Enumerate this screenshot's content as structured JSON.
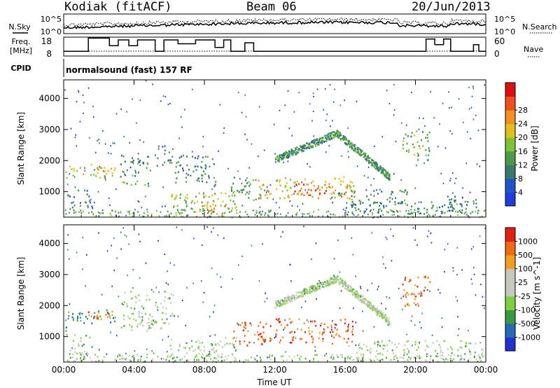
{
  "header": {
    "station": "Kodiak (fitACF)",
    "beam": "Beam 06",
    "date": "20/Jun/2013"
  },
  "panels": {
    "noise": {
      "left_label": "N.Sky",
      "left_ticks": [
        "10^5",
        "10^0"
      ],
      "right_ticks": [
        "10^5",
        "10^0"
      ],
      "right_label": "N.Search"
    },
    "freq": {
      "left_label_1": "Freq.",
      "left_label_2": "[MHz]",
      "left_ticks": [
        "18",
        "8"
      ],
      "right_ticks": [
        "60",
        "0"
      ],
      "right_label": "Nave"
    },
    "cpid": {
      "left_label": "CPID",
      "text": "normalsound (fast) 157 RF"
    }
  },
  "chart_data": [
    {
      "type": "heatmap",
      "name": "power",
      "title": "",
      "xlabel": "",
      "ylabel": "Slant Range [km]",
      "xlim_hours": [
        0,
        24
      ],
      "ylim": [
        180,
        4600
      ],
      "x_ticks": [
        "00:00",
        "04:00",
        "08:00",
        "12:00",
        "16:00",
        "20:00",
        "00:00"
      ],
      "y_ticks": [
        1000,
        2000,
        3000,
        4000
      ],
      "colorbar": {
        "label": "Power [dB]",
        "ticks": [
          4,
          8,
          12,
          16,
          20,
          24,
          28
        ],
        "colors": [
          "#1f3fd8",
          "#2255cc",
          "#3a7a6a",
          "#4c9a4a",
          "#7ac43a",
          "#e0c020",
          "#f09020",
          "#ee5020",
          "#dd1010"
        ]
      },
      "echo_regions": [
        {
          "t0": 0.1,
          "t1": 2.9,
          "r0": 1450,
          "r1": 1900,
          "level": 0.55
        },
        {
          "t0": 2.0,
          "t1": 2.7,
          "r0": 1600,
          "r1": 1800,
          "level": 0.75
        },
        {
          "t0": 0.1,
          "t1": 1.6,
          "r0": 450,
          "r1": 1100,
          "level": 0.3
        },
        {
          "t0": 3.2,
          "t1": 4.8,
          "r0": 1200,
          "r1": 2200,
          "level": 0.35
        },
        {
          "t0": 5.2,
          "t1": 6.2,
          "r0": 1800,
          "r1": 2500,
          "level": 0.3
        },
        {
          "t0": 6.0,
          "t1": 9.8,
          "r0": 300,
          "r1": 1000,
          "level": 0.5
        },
        {
          "t0": 7.8,
          "t1": 9.2,
          "r0": 300,
          "r1": 700,
          "level": 0.7
        },
        {
          "t0": 6.3,
          "t1": 8.6,
          "r0": 1200,
          "r1": 2200,
          "level": 0.3
        },
        {
          "t0": 9.5,
          "t1": 11.2,
          "r0": 700,
          "r1": 1500,
          "level": 0.4
        },
        {
          "t0": 11.0,
          "t1": 11.8,
          "r0": 700,
          "r1": 1400,
          "level": 0.7
        },
        {
          "t0": 12.0,
          "t1": 16.5,
          "r0": 800,
          "r1": 1500,
          "level": 0.65
        },
        {
          "t0": 13.0,
          "t1": 15.5,
          "r0": 900,
          "r1": 1300,
          "level": 0.8
        },
        {
          "t0": 15.0,
          "t1": 19.5,
          "r0": 600,
          "r1": 1100,
          "level": 0.35
        },
        {
          "t0": 16.0,
          "t1": 22.8,
          "r0": 300,
          "r1": 700,
          "level": 0.3
        },
        {
          "t0": 19.2,
          "t1": 20.8,
          "r0": 2000,
          "r1": 3000,
          "level": 0.45
        },
        {
          "t0": 21.8,
          "t1": 23.8,
          "r0": 300,
          "r1": 900,
          "level": 0.3
        }
      ],
      "echo_arcs": [
        {
          "t0": 12.0,
          "t1": 15.5,
          "ra": 2050,
          "rb": 2900,
          "level": 0.35
        },
        {
          "t0": 15.5,
          "t1": 18.5,
          "ra": 2900,
          "rb": 1500,
          "level": 0.35
        }
      ]
    },
    {
      "type": "heatmap",
      "name": "velocity",
      "title": "",
      "xlabel": "Time UT",
      "ylabel": "Slant Range [km]",
      "xlim_hours": [
        0,
        24
      ],
      "ylim": [
        180,
        4600
      ],
      "x_ticks": [
        "00:00",
        "04:00",
        "08:00",
        "12:00",
        "16:00",
        "20:00",
        "00:00"
      ],
      "y_ticks": [
        1000,
        2000,
        3000,
        4000
      ],
      "colorbar": {
        "label": "Velocity [m s^-1]",
        "ticks": [
          1000,
          500,
          100,
          25,
          -25,
          -100,
          -500,
          -1000
        ],
        "colors": [
          "#2233cc",
          "#2a6ab0",
          "#3a9a40",
          "#7ed040",
          "#c8c8c0",
          "#c8c8c0",
          "#f0a020",
          "#f06a10",
          "#e02010"
        ]
      },
      "echo_regions": [
        {
          "t0": 0.1,
          "t1": 2.9,
          "r0": 1450,
          "r1": 1900,
          "level": 0.25
        },
        {
          "t0": 1.2,
          "t1": 2.8,
          "r0": 1500,
          "r1": 1850,
          "level": 0.85
        },
        {
          "t0": 0.1,
          "t1": 1.6,
          "r0": 450,
          "r1": 1100,
          "level": 0.45
        },
        {
          "t0": 3.2,
          "t1": 6.2,
          "r0": 1200,
          "r1": 2500,
          "level": 0.45
        },
        {
          "t0": 6.0,
          "t1": 9.8,
          "r0": 300,
          "r1": 1000,
          "level": 0.45
        },
        {
          "t0": 9.5,
          "t1": 11.8,
          "r0": 700,
          "r1": 1500,
          "level": 0.85
        },
        {
          "t0": 12.0,
          "t1": 16.5,
          "r0": 800,
          "r1": 1600,
          "level": 0.85
        },
        {
          "t0": 16.0,
          "t1": 23.8,
          "r0": 300,
          "r1": 900,
          "level": 0.45
        },
        {
          "t0": 19.2,
          "t1": 20.8,
          "r0": 2000,
          "r1": 3000,
          "level": 0.85
        }
      ],
      "echo_arcs": [
        {
          "t0": 12.0,
          "t1": 15.5,
          "ra": 2050,
          "rb": 2900,
          "level": 0.45
        },
        {
          "t0": 15.5,
          "t1": 18.5,
          "ra": 2900,
          "rb": 1500,
          "level": 0.45
        }
      ]
    }
  ],
  "freq_series": [
    [
      0.0,
      10.5
    ],
    [
      1.4,
      10.5
    ],
    [
      1.4,
      17.5
    ],
    [
      2.6,
      17.5
    ],
    [
      2.6,
      13.5
    ],
    [
      3.1,
      13.5
    ],
    [
      3.1,
      16.5
    ],
    [
      3.7,
      16.5
    ],
    [
      3.7,
      13.5
    ],
    [
      4.2,
      13.5
    ],
    [
      4.2,
      16.5
    ],
    [
      5.2,
      16.5
    ],
    [
      5.2,
      10.5
    ],
    [
      5.7,
      10.5
    ],
    [
      5.7,
      16.5
    ],
    [
      6.5,
      16.5
    ],
    [
      6.5,
      14.5
    ],
    [
      7.5,
      14.5
    ],
    [
      7.5,
      16.5
    ],
    [
      8.6,
      16.5
    ],
    [
      8.6,
      12.5
    ],
    [
      9.1,
      12.5
    ],
    [
      9.1,
      16.5
    ],
    [
      9.5,
      16.5
    ],
    [
      9.5,
      10.5
    ],
    [
      10.3,
      10.5
    ],
    [
      10.3,
      15.0
    ],
    [
      10.8,
      15.0
    ],
    [
      10.8,
      10.5
    ],
    [
      20.6,
      10.5
    ],
    [
      20.6,
      17.0
    ],
    [
      21.1,
      17.0
    ],
    [
      21.1,
      14.0
    ],
    [
      21.6,
      14.0
    ],
    [
      21.6,
      17.0
    ],
    [
      22.0,
      17.0
    ],
    [
      22.0,
      10.5
    ],
    [
      23.3,
      10.5
    ],
    [
      23.3,
      14.0
    ],
    [
      23.6,
      14.0
    ],
    [
      23.6,
      10.5
    ],
    [
      24.0,
      10.5
    ]
  ]
}
